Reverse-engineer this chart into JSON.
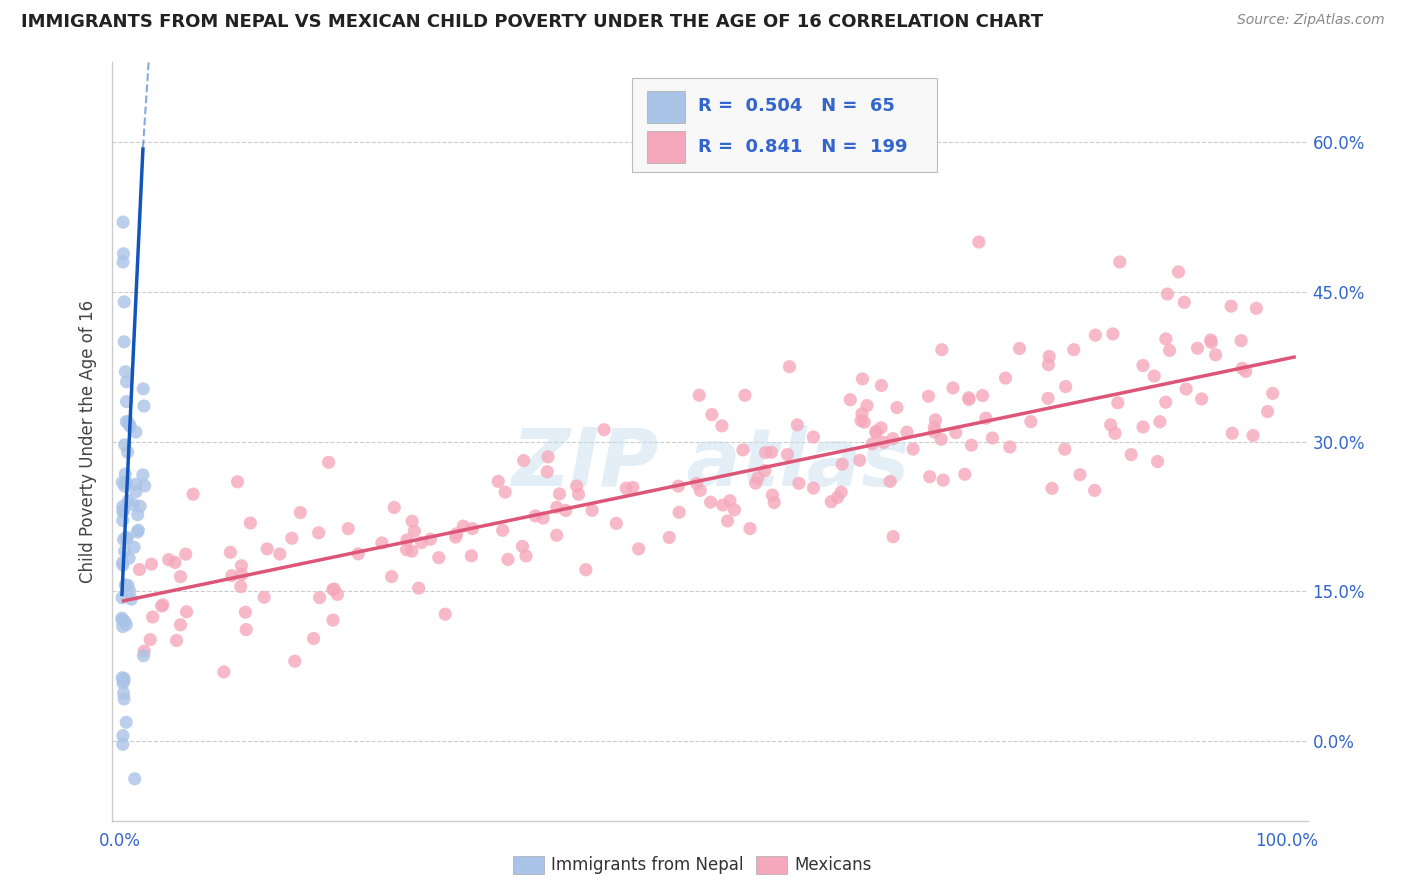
{
  "title": "IMMIGRANTS FROM NEPAL VS MEXICAN CHILD POVERTY UNDER THE AGE OF 16 CORRELATION CHART",
  "source": "Source: ZipAtlas.com",
  "ylabel": "Child Poverty Under the Age of 16",
  "legend_blue_r": "0.504",
  "legend_blue_n": "65",
  "legend_pink_r": "0.841",
  "legend_pink_n": "199",
  "blue_color": "#aac4e8",
  "pink_color": "#f5a8bb",
  "blue_line_color": "#1155bb",
  "pink_line_color": "#dd5577",
  "legend_text_color": "#3366cc",
  "grid_color": "#cccccc",
  "axis_color": "#cccccc",
  "ytick_color": "#3366cc",
  "xtick_color": "#3366cc"
}
